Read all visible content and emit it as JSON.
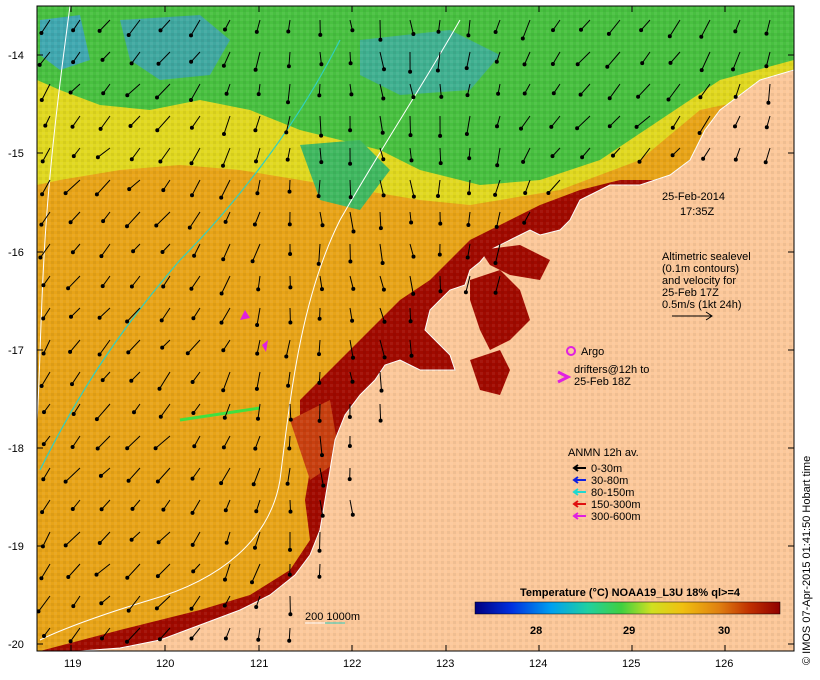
{
  "map": {
    "date_line1": "25-Feb-2014",
    "date_line2": "17:35Z",
    "sealevel_lines": [
      "Altimetric sealevel",
      "(0.1m contours)",
      "and velocity for",
      "25-Feb 17Z",
      "0.5m/s (1kt 24h)"
    ],
    "argo_label": "Argo",
    "drifters_line1": "drifters@12h to",
    "drifters_line2": "25-Feb 18Z",
    "anmn_title": "ANMN 12h av.",
    "anmn_items": [
      {
        "label": "0-30m",
        "color": "#000000"
      },
      {
        "label": "30-80m",
        "color": "#1020e0"
      },
      {
        "label": "80-150m",
        "color": "#20d8d0"
      },
      {
        "label": "150-300m",
        "color": "#e01010"
      },
      {
        "label": "300-600m",
        "color": "#e020e0"
      }
    ],
    "contour_label": "200  1000m",
    "colorbar": {
      "title": "Temperature (°C) NOAA19_L3U 18% ql>=4",
      "ticks": [
        "28",
        "29",
        "30"
      ]
    },
    "lat_ticks": [
      "-14",
      "-15",
      "-16",
      "-17",
      "-18",
      "-19",
      "-20"
    ],
    "lon_ticks": [
      "119",
      "120",
      "121",
      "122",
      "123",
      "124",
      "125",
      "126"
    ],
    "credit": "© IMOS 07-Apr-2015 01:41:50 Hobart time",
    "colors": {
      "land": "#fcc89a",
      "hot": "#a00a00",
      "orange": "#e8a010",
      "yellow": "#e8e010",
      "green": "#40c040",
      "teal": "#40a0a0",
      "frame": "#000000"
    }
  }
}
